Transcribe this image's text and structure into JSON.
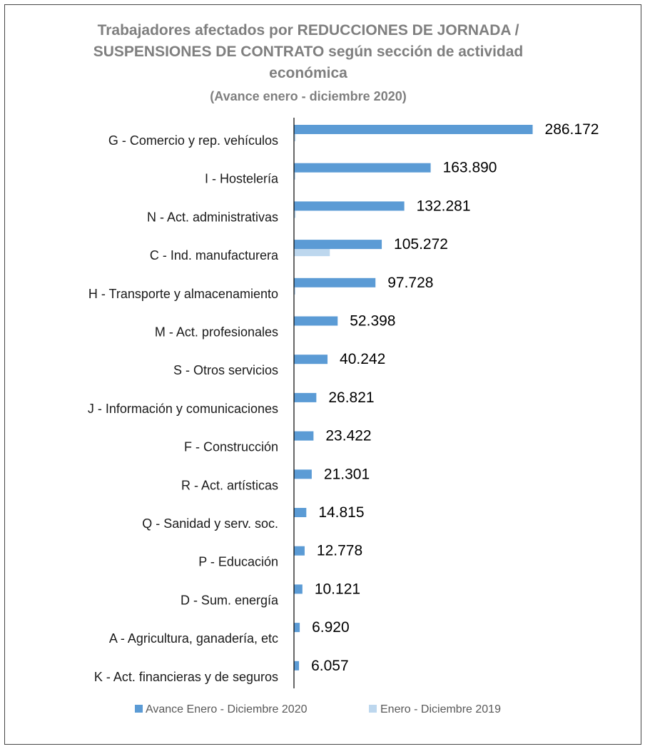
{
  "chart_data": {
    "type": "bar",
    "orientation": "horizontal",
    "title": "Trabajadores afectados por REDUCCIONES DE JORNADA / SUSPENSIONES DE CONTRATO según sección de actividad económica",
    "subtitle": "(Avance enero - diciembre 2020)",
    "categories": [
      "G - Comercio y rep. vehículos",
      "I - Hostelería",
      "N - Act. administrativas",
      "C - Ind. manufacturera",
      "H - Transporte y almacenamiento",
      "M - Act. profesionales",
      "S - Otros servicios",
      "J - Información y comunicaciones",
      "F - Construcción",
      "R - Act. artísticas",
      "Q - Sanidad y serv. soc.",
      "P - Educación",
      "D - Sum. energía",
      "A - Agricultura, ganadería, etc",
      "K - Act. financieras y de seguros"
    ],
    "series": [
      {
        "name": "Avance Enero - Diciembre 2020",
        "color": "#5b9bd5",
        "values": [
          286172,
          163890,
          132281,
          105272,
          97728,
          52398,
          40242,
          26821,
          23422,
          21301,
          14815,
          12778,
          10121,
          6920,
          6057
        ]
      },
      {
        "name": "Enero - Diciembre 2019",
        "color": "#bdd7ee",
        "values": [
          2000,
          1500,
          2000,
          43000,
          1500,
          0,
          0,
          0,
          0,
          0,
          0,
          0,
          0,
          0,
          0
        ]
      }
    ],
    "data_labels": [
      "286.172",
      "163.890",
      "132.281",
      "105.272",
      "97.728",
      "52.398",
      "40.242",
      "26.821",
      "23.422",
      "21.301",
      "14.815",
      "12.778",
      "10.121",
      "6.920",
      "6.057"
    ],
    "xlim": [
      0,
      290000
    ],
    "grid": false,
    "legend_position": "bottom"
  }
}
